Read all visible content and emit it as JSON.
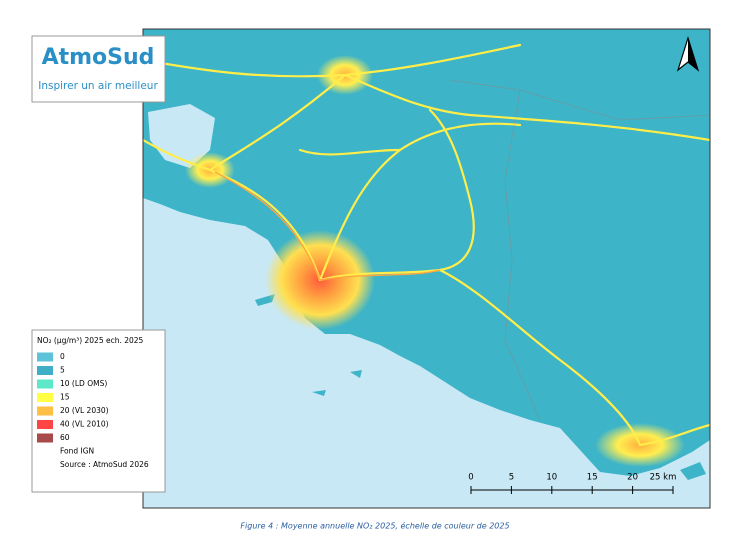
{
  "logo": {
    "name": "AtmoSud",
    "tagline": "Inspirer un air meilleur"
  },
  "legend": {
    "title": "NO₂ (µg/m³) 2025 ech. 2025",
    "items": [
      {
        "label": "0",
        "color": "#5cc3d9"
      },
      {
        "label": "5",
        "color": "#3fafc8"
      },
      {
        "label": "10 (LD OMS)",
        "color": "#5de8c9"
      },
      {
        "label": "15",
        "color": "#ffff45"
      },
      {
        "label": "20 (VL 2030)",
        "color": "#ffbe45"
      },
      {
        "label": "40 (VL 2010)",
        "color": "#ff4444"
      },
      {
        "label": "60",
        "color": "#a84a4a"
      }
    ],
    "notes": [
      "Fond IGN",
      "Source : AtmoSud 2026"
    ]
  },
  "scale_bar": {
    "labels": [
      "0",
      "5",
      "10",
      "15",
      "20",
      "25 km"
    ]
  },
  "caption": "Figure 4 : Moyenne annuelle NO₂ 2025, échelle de couleur de 2025"
}
